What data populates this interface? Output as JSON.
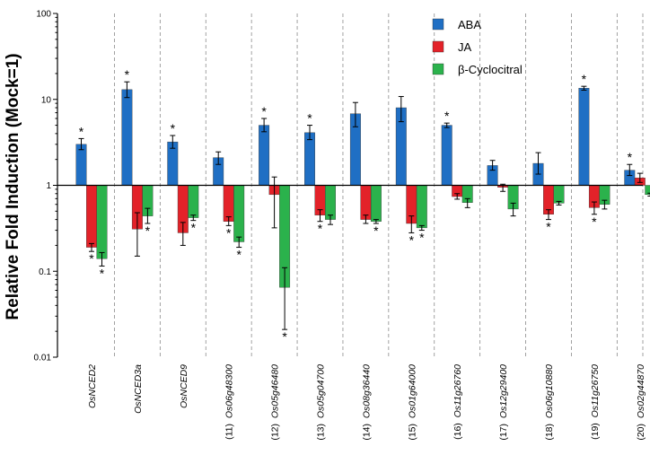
{
  "chart_data": {
    "type": "bar",
    "scale": "log",
    "ylabel": "Relative Fold Induction (Mock=1)",
    "ylim": [
      0.01,
      100
    ],
    "yticks": [
      "0.01",
      "0.1",
      "1",
      "10",
      "100"
    ],
    "legend_position": "top-right",
    "categories": [
      {
        "prefix": "",
        "gene": "OsNCED2"
      },
      {
        "prefix": "",
        "gene": "OsNCED3a"
      },
      {
        "prefix": "",
        "gene": "OsNCED9"
      },
      {
        "prefix": "(11)",
        "gene": "Os06g48300"
      },
      {
        "prefix": "(12)",
        "gene": "Os05g46480"
      },
      {
        "prefix": "(13)",
        "gene": "Os05g04700"
      },
      {
        "prefix": "(14)",
        "gene": "Os08g36440"
      },
      {
        "prefix": "(15)",
        "gene": "Os01g64000"
      },
      {
        "prefix": "(16)",
        "gene": "Os11g26760"
      },
      {
        "prefix": "(17)",
        "gene": "Os12g29400"
      },
      {
        "prefix": "(18)",
        "gene": "Os06g10880"
      },
      {
        "prefix": "(19)",
        "gene": "Os11g26750"
      },
      {
        "prefix": "(20)",
        "gene": "Os02g44870"
      }
    ],
    "series": [
      {
        "name": "ABA",
        "color": "#1f6fc4",
        "values": [
          3.0,
          13.0,
          3.2,
          2.1,
          5.0,
          4.1,
          6.8,
          8.0,
          5.0,
          1.7,
          1.8,
          13.5,
          1.5
        ],
        "err_low": [
          2.6,
          10.5,
          2.7,
          1.75,
          4.2,
          3.4,
          4.8,
          5.5,
          4.7,
          1.5,
          1.35,
          12.8,
          1.3
        ],
        "err_high": [
          3.5,
          16.0,
          3.8,
          2.45,
          6.0,
          5.0,
          9.2,
          10.8,
          5.3,
          1.95,
          2.4,
          14.2,
          1.75
        ],
        "sig": [
          true,
          true,
          true,
          false,
          true,
          true,
          false,
          false,
          true,
          false,
          false,
          true,
          true
        ]
      },
      {
        "name": "JA",
        "color": "#e32229",
        "values": [
          0.19,
          0.31,
          0.28,
          0.38,
          0.78,
          0.45,
          0.4,
          0.36,
          0.74,
          0.95,
          0.46,
          0.55,
          1.22
        ],
        "err_low": [
          0.17,
          0.15,
          0.2,
          0.34,
          0.32,
          0.38,
          0.36,
          0.28,
          0.69,
          0.85,
          0.4,
          0.46,
          1.08
        ],
        "err_high": [
          0.21,
          0.48,
          0.37,
          0.43,
          1.25,
          0.52,
          0.45,
          0.44,
          0.8,
          1.03,
          0.52,
          0.64,
          1.38
        ],
        "sig": [
          true,
          false,
          false,
          true,
          false,
          true,
          false,
          true,
          false,
          false,
          true,
          true,
          false
        ]
      },
      {
        "name": "β-Cyclocitral",
        "color": "#2bb24c",
        "values": [
          0.14,
          0.44,
          0.42,
          0.22,
          0.065,
          0.4,
          0.38,
          0.32,
          0.63,
          0.53,
          0.62,
          0.6,
          0.78
        ],
        "err_low": [
          0.115,
          0.36,
          0.39,
          0.19,
          0.021,
          0.35,
          0.36,
          0.3,
          0.55,
          0.44,
          0.59,
          0.53,
          0.75
        ],
        "err_high": [
          0.165,
          0.54,
          0.45,
          0.25,
          0.11,
          0.45,
          0.4,
          0.34,
          0.7,
          0.62,
          0.65,
          0.67,
          0.81
        ],
        "sig": [
          true,
          true,
          true,
          true,
          true,
          false,
          true,
          true,
          false,
          false,
          false,
          false,
          false
        ]
      }
    ],
    "significance_marker": "*"
  }
}
